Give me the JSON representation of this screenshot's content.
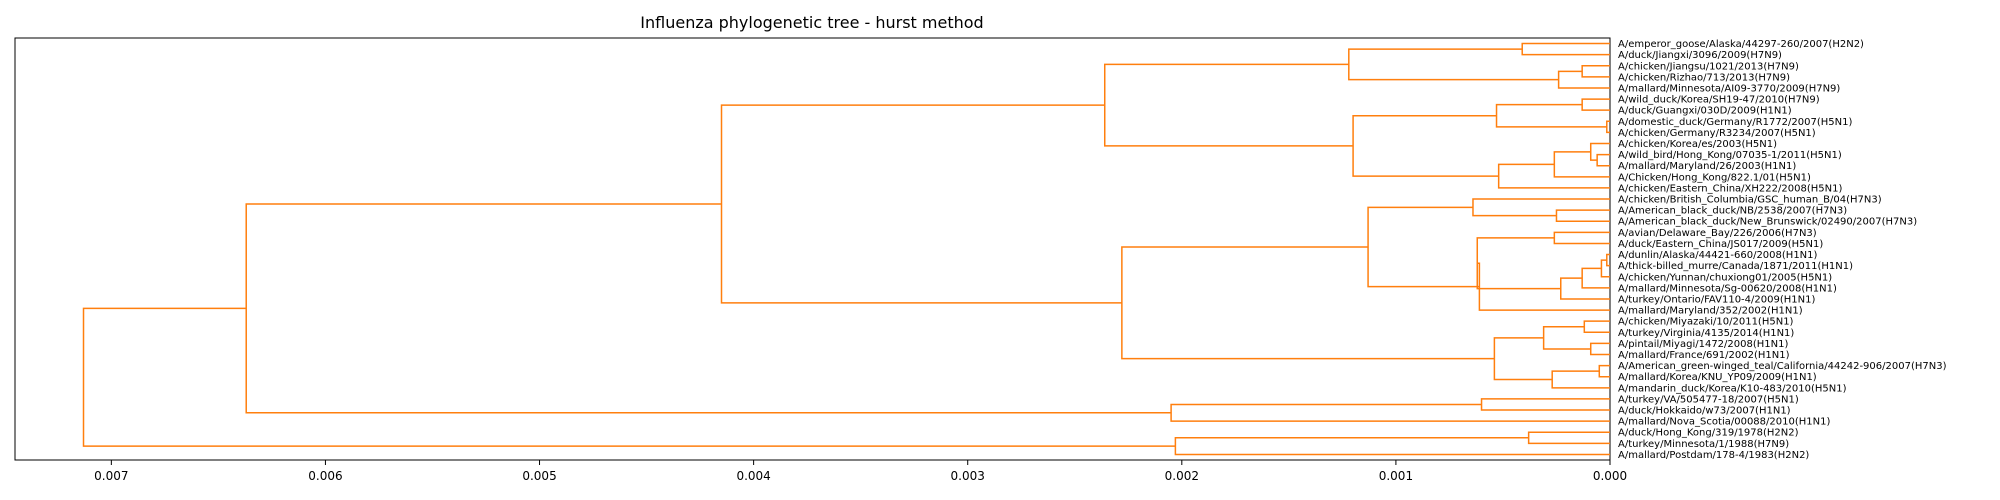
{
  "chart_data": {
    "type": "dendrogram",
    "title": "Influenza phylogenetic tree - hurst method",
    "xlabel": "",
    "ylabel": "",
    "orientation": "right",
    "xlim": [
      0.00745,
      0.0
    ],
    "xticks": [
      0.007,
      0.006,
      0.005,
      0.004,
      0.003,
      0.002,
      0.001,
      0.0
    ],
    "xtick_labels": [
      "0.007",
      "0.006",
      "0.005",
      "0.004",
      "0.003",
      "0.002",
      "0.001",
      "0.000"
    ],
    "grid": false,
    "line_color": "#ff7f0e",
    "leaves": [
      "A/emperor_goose/Alaska/44297-260/2007(H2N2)",
      "A/duck/Jiangxi/3096/2009(H7N9)",
      "A/chicken/Jiangsu/1021/2013(H7N9)",
      "A/chicken/Rizhao/713/2013(H7N9)",
      "A/mallard/Minnesota/AI09-3770/2009(H7N9)",
      "A/wild_duck/Korea/SH19-47/2010(H7N9)",
      "A/duck/Guangxi/030D/2009(H1N1)",
      "A/domestic_duck/Germany/R1772/2007(H5N1)",
      "A/chicken/Germany/R3234/2007(H5N1)",
      "A/chicken/Korea/es/2003(H5N1)",
      "A/wild_bird/Hong_Kong/07035-1/2011(H5N1)",
      "A/mallard/Maryland/26/2003(H1N1)",
      "A/Chicken/Hong_Kong/822.1/01(H5N1)",
      "A/chicken/Eastern_China/XH222/2008(H5N1)",
      "A/chicken/British_Columbia/GSC_human_B/04(H7N3)",
      "A/American_black_duck/NB/2538/2007(H7N3)",
      "A/American_black_duck/New_Brunswick/02490/2007(H7N3)",
      "A/avian/Delaware_Bay/226/2006(H7N3)",
      "A/duck/Eastern_China/JS017/2009(H5N1)",
      "A/dunlin/Alaska/44421-660/2008(H1N1)",
      "A/thick-billed_murre/Canada/1871/2011(H1N1)",
      "A/chicken/Yunnan/chuxiong01/2005(H5N1)",
      "A/mallard/Minnesota/Sg-00620/2008(H1N1)",
      "A/turkey/Ontario/FAV110-4/2009(H1N1)",
      "A/mallard/Maryland/352/2002(H1N1)",
      "A/chicken/Miyazaki/10/2011(H5N1)",
      "A/turkey/Virginia/4135/2014(H1N1)",
      "A/pintail/Miyagi/1472/2008(H1N1)",
      "A/mallard/France/691/2002(H1N1)",
      "A/American_green-winged_teal/California/44242-906/2007(H7N3)",
      "A/mallard/Korea/KNU_YP09/2009(H1N1)",
      "A/mandarin_duck/Korea/K10-483/2010(H5N1)",
      "A/turkey/VA/505477-18/2007(H5N1)",
      "A/duck/Hokkaido/w73/2007(H1N1)",
      "A/mallard/Nova_Scotia/00088/2010(H1N1)",
      "A/duck/Hong_Kong/319/1978(H2N2)",
      "A/turkey/Minnesota/1/1988(H7N9)",
      "A/mallard/Postdam/178-4/1983(H2N2)"
    ],
    "links": [
      {
        "l": 0,
        "r": 1,
        "h": 0.00041
      },
      {
        "l": 2,
        "r": 3,
        "h": 0.00013
      },
      {
        "l": "n1",
        "r": 4,
        "h": 0.00024
      },
      {
        "l": "n0",
        "r": "n2",
        "h": 0.00122
      },
      {
        "l": 7,
        "r": 8,
        "h": 1.5e-05
      },
      {
        "l": 5,
        "r": 6,
        "h": 0.00013
      },
      {
        "l": "n5",
        "r": "n4",
        "h": 0.00053
      },
      {
        "l": 10,
        "r": 11,
        "h": 6e-05
      },
      {
        "l": 9,
        "r": "n7",
        "h": 9e-05
      },
      {
        "l": "n8",
        "r": 12,
        "h": 0.00026
      },
      {
        "l": "n9",
        "r": 13,
        "h": 0.00052
      },
      {
        "l": "n6",
        "r": "n10",
        "h": 0.0012
      },
      {
        "l": "n3",
        "r": "n11",
        "h": 0.00236
      },
      {
        "l": 15,
        "r": 16,
        "h": 0.00025
      },
      {
        "l": 14,
        "r": "n13",
        "h": 0.00064
      },
      {
        "l": 19,
        "r": 20,
        "h": 1.5e-05
      },
      {
        "l": "n15",
        "r": 21,
        "h": 4e-05
      },
      {
        "l": "n16",
        "r": 22,
        "h": 0.00013
      },
      {
        "l": "n17",
        "r": 23,
        "h": 0.00023
      },
      {
        "l": 17,
        "r": 18,
        "h": 0.00026
      },
      {
        "l": "n19",
        "r": "n18",
        "h": 0.00062
      },
      {
        "l": "n20",
        "r": 24,
        "h": 0.00061
      },
      {
        "l": "n14",
        "r": "n21",
        "h": 0.00113
      },
      {
        "l": 27,
        "r": 28,
        "h": 9e-05
      },
      {
        "l": 25,
        "r": 26,
        "h": 0.00012
      },
      {
        "l": "n24",
        "r": "n23",
        "h": 0.00031
      },
      {
        "l": 29,
        "r": 30,
        "h": 5e-05
      },
      {
        "l": "n26",
        "r": 31,
        "h": 0.00027
      },
      {
        "l": "n25",
        "r": "n27",
        "h": 0.00054
      },
      {
        "l": "n22",
        "r": "n28",
        "h": 0.00228
      },
      {
        "l": "n12",
        "r": "n29",
        "h": 0.00415
      },
      {
        "l": 32,
        "r": 33,
        "h": 0.0006
      },
      {
        "l": "n31",
        "r": 34,
        "h": 0.00205
      },
      {
        "l": "n30",
        "r": "n32",
        "h": 0.00637
      },
      {
        "l": 35,
        "r": 36,
        "h": 0.00038
      },
      {
        "l": "n34",
        "r": 37,
        "h": 0.00203
      },
      {
        "l": "n33",
        "r": "n35",
        "h": 0.00713
      }
    ]
  }
}
